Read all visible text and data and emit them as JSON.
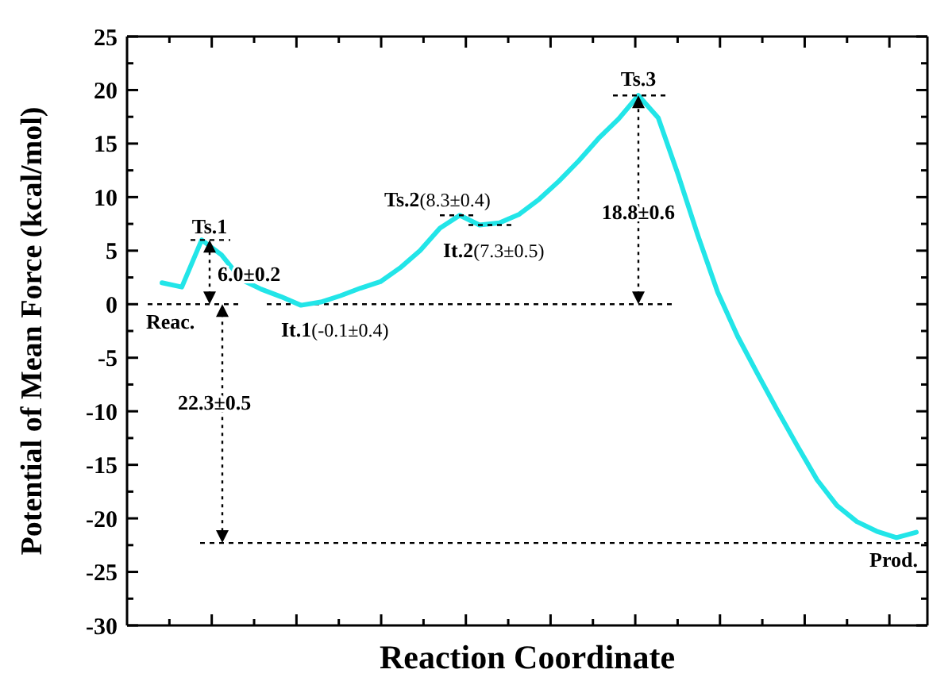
{
  "chart_data": {
    "type": "line",
    "ylabel": "Potential of Mean Force (kcal/mol)",
    "xlabel": "Reaction Coordinate",
    "categories": [
      null,
      null,
      null,
      null,
      null,
      null,
      null,
      null,
      null,
      null,
      null,
      null,
      null,
      null,
      null,
      null,
      null,
      null,
      null,
      null,
      null,
      null,
      null,
      null,
      null,
      null,
      null,
      null,
      null,
      null,
      null,
      null,
      null,
      null,
      null,
      null,
      null,
      null,
      null
    ],
    "ylim": [
      -30,
      25
    ],
    "yticks": [
      -30,
      -25,
      -20,
      -15,
      -10,
      -5,
      0,
      5,
      10,
      15,
      20,
      25
    ],
    "marker": "none",
    "grid": false,
    "series": [
      {
        "color": "#22e5e8",
        "line_style": "solid",
        "values": [
          2.0,
          1.6,
          6.0,
          4.6,
          2.3,
          1.4,
          0.7,
          -0.1,
          0.2,
          0.8,
          1.5,
          2.1,
          3.4,
          5.0,
          7.1,
          8.3,
          7.4,
          7.6,
          8.4,
          9.8,
          11.5,
          13.4,
          15.5,
          17.3,
          19.5,
          17.4,
          12.1,
          6.4,
          1.1,
          -3.0,
          -6.5,
          -9.9,
          -13.2,
          -16.4,
          -18.8,
          -20.3,
          -21.2,
          -21.8,
          -21.3
        ]
      }
    ],
    "ref_lines": [
      {
        "axis": "y",
        "value": 0,
        "line_style": "dashed",
        "color": "#000000"
      },
      {
        "axis": "y",
        "value": -22.3,
        "line_style": "dashed",
        "color": "#000000"
      }
    ],
    "annotations": [
      "Ts.1",
      "6.0±0.2",
      "Reac.",
      "It.1(-0.1±0.4)",
      "22.3±0.5",
      "Ts.2(8.3±0.4)",
      "It.2(7.3±0.5)",
      "Ts.3",
      "18.8±0.6",
      "Prod."
    ]
  }
}
